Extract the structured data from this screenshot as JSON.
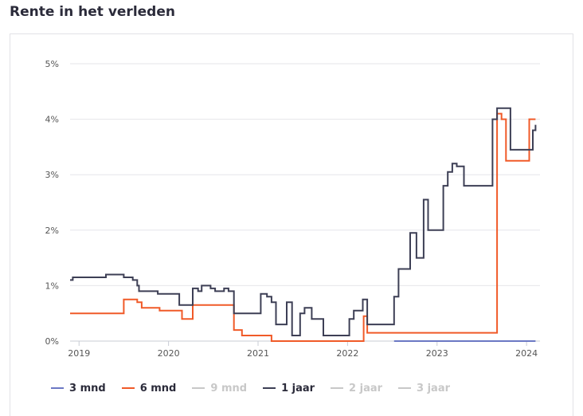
{
  "header": {
    "title": "Rente in het verleden"
  },
  "legend": [
    {
      "label": "3 mnd",
      "color": "#6b78c4",
      "active": true
    },
    {
      "label": "6 mnd",
      "color": "#f05a28",
      "active": true
    },
    {
      "label": "9 mnd",
      "color": "#c8c8c8",
      "active": false
    },
    {
      "label": "1 jaar",
      "color": "#3d3f55",
      "active": true
    },
    {
      "label": "2 jaar",
      "color": "#c8c8c8",
      "active": false
    },
    {
      "label": "3 jaar",
      "color": "#c8c8c8",
      "active": false
    }
  ],
  "chart_data": {
    "type": "line",
    "step": true,
    "ylabel": "",
    "xlabel": "",
    "ylim": [
      0,
      5
    ],
    "xlim": [
      2018.9,
      2024.15
    ],
    "y_ticks": [
      0,
      1,
      2,
      3,
      4,
      5
    ],
    "y_tick_labels": [
      "0%",
      "1%",
      "2%",
      "3%",
      "4%",
      "5%"
    ],
    "x_ticks": [
      2019,
      2020,
      2021,
      2022,
      2023,
      2024
    ],
    "x_tick_labels": [
      "2019",
      "2020",
      "2021",
      "2022",
      "2023",
      "2024"
    ],
    "grid": true,
    "legend_position": "bottom",
    "series": [
      {
        "name": "3 mnd",
        "color": "#6b78c4",
        "points": [
          [
            2022.52,
            0.0
          ],
          [
            2024.1,
            0.0
          ]
        ]
      },
      {
        "name": "6 mnd",
        "color": "#f05a28",
        "points": [
          [
            2018.9,
            0.5
          ],
          [
            2019.5,
            0.75
          ],
          [
            2019.65,
            0.7
          ],
          [
            2019.7,
            0.6
          ],
          [
            2019.9,
            0.55
          ],
          [
            2020.15,
            0.4
          ],
          [
            2020.27,
            0.65
          ],
          [
            2020.73,
            0.2
          ],
          [
            2020.82,
            0.1
          ],
          [
            2021.15,
            0.0
          ],
          [
            2022.18,
            0.45
          ],
          [
            2022.22,
            0.15
          ],
          [
            2023.67,
            4.1
          ],
          [
            2023.72,
            4.0
          ],
          [
            2023.77,
            3.25
          ],
          [
            2024.03,
            4.0
          ],
          [
            2024.1,
            4.0
          ]
        ]
      },
      {
        "name": "1 jaar",
        "color": "#3d3f55",
        "points": [
          [
            2018.9,
            1.1
          ],
          [
            2018.93,
            1.15
          ],
          [
            2019.3,
            1.2
          ],
          [
            2019.5,
            1.15
          ],
          [
            2019.6,
            1.1
          ],
          [
            2019.65,
            1.0
          ],
          [
            2019.67,
            0.9
          ],
          [
            2019.88,
            0.85
          ],
          [
            2020.12,
            0.65
          ],
          [
            2020.27,
            0.95
          ],
          [
            2020.33,
            0.9
          ],
          [
            2020.37,
            1.0
          ],
          [
            2020.47,
            0.95
          ],
          [
            2020.52,
            0.9
          ],
          [
            2020.62,
            0.95
          ],
          [
            2020.67,
            0.9
          ],
          [
            2020.73,
            0.5
          ],
          [
            2021.03,
            0.85
          ],
          [
            2021.1,
            0.8
          ],
          [
            2021.15,
            0.7
          ],
          [
            2021.2,
            0.3
          ],
          [
            2021.32,
            0.7
          ],
          [
            2021.38,
            0.1
          ],
          [
            2021.47,
            0.5
          ],
          [
            2021.52,
            0.6
          ],
          [
            2021.6,
            0.4
          ],
          [
            2021.73,
            0.1
          ],
          [
            2021.95,
            0.1
          ],
          [
            2022.02,
            0.4
          ],
          [
            2022.07,
            0.55
          ],
          [
            2022.17,
            0.75
          ],
          [
            2022.22,
            0.3
          ],
          [
            2022.52,
            0.8
          ],
          [
            2022.57,
            1.3
          ],
          [
            2022.7,
            1.95
          ],
          [
            2022.77,
            1.5
          ],
          [
            2022.85,
            2.55
          ],
          [
            2022.9,
            2.0
          ],
          [
            2023.07,
            2.8
          ],
          [
            2023.12,
            3.05
          ],
          [
            2023.17,
            3.2
          ],
          [
            2023.22,
            3.15
          ],
          [
            2023.3,
            2.8
          ],
          [
            2023.62,
            4.0
          ],
          [
            2023.67,
            4.2
          ],
          [
            2023.82,
            3.45
          ],
          [
            2024.07,
            3.8
          ],
          [
            2024.1,
            3.9
          ]
        ]
      }
    ]
  }
}
